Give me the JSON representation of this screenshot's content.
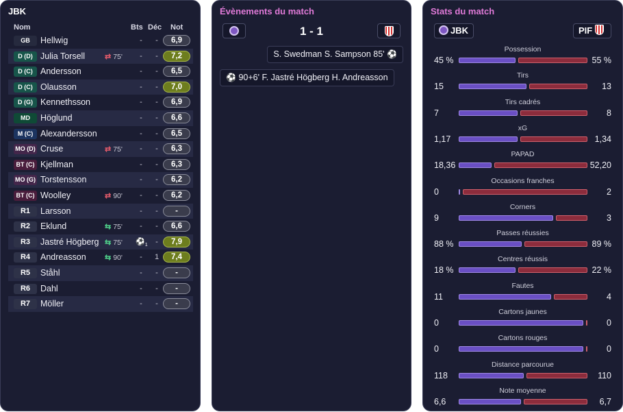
{
  "lineup": {
    "team": "JBK",
    "headers": {
      "name": "Nom",
      "goals": "Bts",
      "assists": "Déc",
      "rating": "Not"
    },
    "players": [
      {
        "pos": "GB",
        "pos_type": "gk",
        "name": "Hellwig",
        "sub": "",
        "sub_dir": "",
        "goals": "-",
        "goal_icon": "",
        "assists": "-",
        "rating": "6,9",
        "highlight": false
      },
      {
        "pos": "D (D)",
        "pos_type": "def",
        "name": "Julia Torsell",
        "sub": "75'",
        "sub_dir": "out",
        "goals": "-",
        "goal_icon": "",
        "assists": "-",
        "rating": "7,2",
        "highlight": true
      },
      {
        "pos": "D (C)",
        "pos_type": "def",
        "name": "Andersson",
        "sub": "",
        "sub_dir": "",
        "goals": "-",
        "goal_icon": "",
        "assists": "-",
        "rating": "6,5",
        "highlight": false
      },
      {
        "pos": "D (C)",
        "pos_type": "def",
        "name": "Olausson",
        "sub": "",
        "sub_dir": "",
        "goals": "-",
        "goal_icon": "",
        "assists": "-",
        "rating": "7,0",
        "highlight": true
      },
      {
        "pos": "D (G)",
        "pos_type": "def",
        "name": "Kennethsson",
        "sub": "",
        "sub_dir": "",
        "goals": "-",
        "goal_icon": "",
        "assists": "-",
        "rating": "6,9",
        "highlight": false
      },
      {
        "pos": "MD",
        "pos_type": "mid",
        "name": "Höglund",
        "sub": "",
        "sub_dir": "",
        "goals": "-",
        "goal_icon": "",
        "assists": "-",
        "rating": "6,6",
        "highlight": false
      },
      {
        "pos": "M (C)",
        "pos_type": "mc",
        "name": "Alexandersson",
        "sub": "",
        "sub_dir": "",
        "goals": "-",
        "goal_icon": "",
        "assists": "-",
        "rating": "6,5",
        "highlight": false
      },
      {
        "pos": "MO (D)",
        "pos_type": "att",
        "name": "Cruse",
        "sub": "75'",
        "sub_dir": "out",
        "goals": "-",
        "goal_icon": "",
        "assists": "-",
        "rating": "6,3",
        "highlight": false
      },
      {
        "pos": "BT (C)",
        "pos_type": "bt",
        "name": "Kjellman",
        "sub": "",
        "sub_dir": "",
        "goals": "-",
        "goal_icon": "",
        "assists": "-",
        "rating": "6,3",
        "highlight": false
      },
      {
        "pos": "MO (G)",
        "pos_type": "att",
        "name": "Torstensson",
        "sub": "",
        "sub_dir": "",
        "goals": "-",
        "goal_icon": "",
        "assists": "-",
        "rating": "6,2",
        "highlight": false
      },
      {
        "pos": "BT (C)",
        "pos_type": "bt",
        "name": "Woolley",
        "sub": "90'",
        "sub_dir": "out",
        "goals": "-",
        "goal_icon": "",
        "assists": "-",
        "rating": "6,2",
        "highlight": false
      },
      {
        "pos": "R1",
        "pos_type": "sub",
        "name": "Larsson",
        "sub": "",
        "sub_dir": "",
        "goals": "-",
        "goal_icon": "",
        "assists": "-",
        "rating": "-",
        "highlight": false
      },
      {
        "pos": "R2",
        "pos_type": "sub",
        "name": "Eklund",
        "sub": "75'",
        "sub_dir": "in",
        "goals": "-",
        "goal_icon": "",
        "assists": "-",
        "rating": "6,6",
        "highlight": false
      },
      {
        "pos": "R3",
        "pos_type": "sub",
        "name": "Jastré Högberg",
        "sub": "75'",
        "sub_dir": "in",
        "goals": "",
        "goal_icon": "1",
        "assists": "-",
        "rating": "7,9",
        "highlight": true
      },
      {
        "pos": "R4",
        "pos_type": "sub",
        "name": "Andreasson",
        "sub": "90'",
        "sub_dir": "in",
        "goals": "-",
        "goal_icon": "",
        "assists": "1",
        "rating": "7,4",
        "highlight": true
      },
      {
        "pos": "R5",
        "pos_type": "sub",
        "name": "Ståhl",
        "sub": "",
        "sub_dir": "",
        "goals": "-",
        "goal_icon": "",
        "assists": "-",
        "rating": "-",
        "highlight": false
      },
      {
        "pos": "R6",
        "pos_type": "sub",
        "name": "Dahl",
        "sub": "",
        "sub_dir": "",
        "goals": "-",
        "goal_icon": "",
        "assists": "-",
        "rating": "-",
        "highlight": false
      },
      {
        "pos": "R7",
        "pos_type": "sub",
        "name": "Möller",
        "sub": "",
        "sub_dir": "",
        "goals": "-",
        "goal_icon": "",
        "assists": "-",
        "rating": "-",
        "highlight": false
      }
    ]
  },
  "events": {
    "title": "Évènements du match",
    "score": "1 - 1",
    "home_crest_icon": "jbk-crest-icon",
    "away_crest_icon": "pif-crest-icon",
    "items": [
      {
        "side": "away",
        "text": "S. Swedman  S. Sampson  85'",
        "icon": "ball-icon"
      },
      {
        "side": "home",
        "text": "90+6'  F. Jastré Högberg  H. Andreasson",
        "icon": "ball-icon"
      }
    ]
  },
  "stats": {
    "title": "Stats du match",
    "home_team": "JBK",
    "away_team": "PIF",
    "colors": {
      "home": "#6a4fc4",
      "away": "#8c2c3c"
    },
    "rows": [
      {
        "label": "Possession",
        "home": "45 %",
        "away": "55 %",
        "home_val": 45,
        "away_val": 55
      },
      {
        "label": "Tirs",
        "home": "15",
        "away": "13",
        "home_val": 15,
        "away_val": 13
      },
      {
        "label": "Tirs cadrés",
        "home": "7",
        "away": "8",
        "home_val": 7,
        "away_val": 8
      },
      {
        "label": "xG",
        "home": "1,17",
        "away": "1,34",
        "home_val": 1.17,
        "away_val": 1.34
      },
      {
        "label": "PAPAD",
        "home": "18,36",
        "away": "52,20",
        "home_val": 18.36,
        "away_val": 52.2
      },
      {
        "label": "Occasions franches",
        "home": "0",
        "away": "2",
        "home_val": 0,
        "away_val": 2
      },
      {
        "label": "Corners",
        "home": "9",
        "away": "3",
        "home_val": 9,
        "away_val": 3
      },
      {
        "label": "Passes réussies",
        "home": "88 %",
        "away": "89 %",
        "home_val": 88,
        "away_val": 89
      },
      {
        "label": "Centres réussis",
        "home": "18 %",
        "away": "22 %",
        "home_val": 18,
        "away_val": 22
      },
      {
        "label": "Fautes",
        "home": "11",
        "away": "4",
        "home_val": 11,
        "away_val": 4
      },
      {
        "label": "Cartons jaunes",
        "home": "0",
        "away": "0",
        "home_val": 0,
        "away_val": 0
      },
      {
        "label": "Cartons rouges",
        "home": "0",
        "away": "0",
        "home_val": 0,
        "away_val": 0
      },
      {
        "label": "Distance parcourue",
        "home": "118",
        "away": "110",
        "home_val": 118,
        "away_val": 110
      },
      {
        "label": "Note moyenne",
        "home": "6,6",
        "away": "6,7",
        "home_val": 6.6,
        "away_val": 6.7
      }
    ]
  }
}
